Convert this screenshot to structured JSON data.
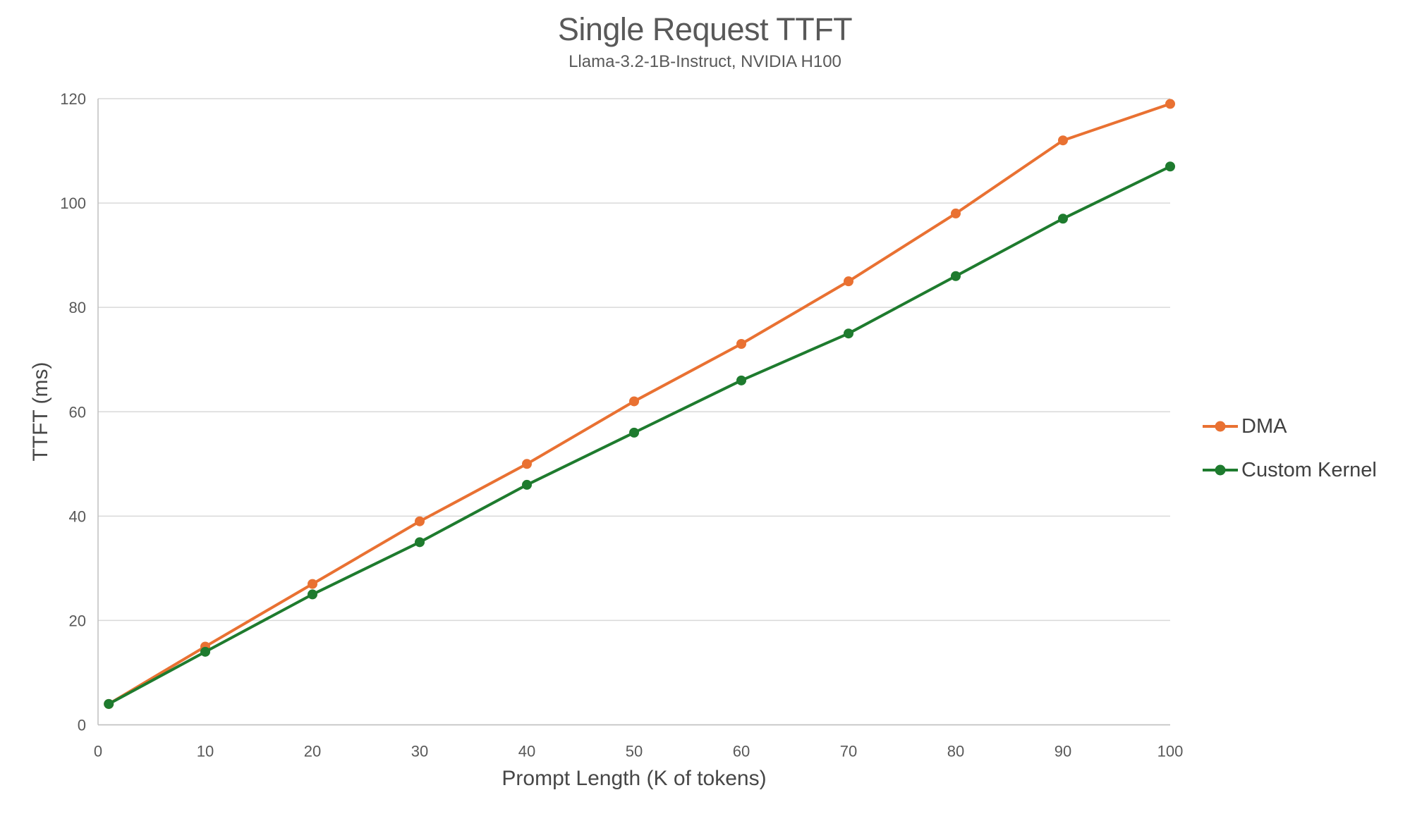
{
  "chart_data": {
    "type": "line",
    "title": "Single Request TTFT",
    "subtitle": "Llama-3.2-1B-Instruct, NVIDIA H100",
    "xlabel": "Prompt Length (K of tokens)",
    "ylabel": "TTFT (ms)",
    "x": [
      1,
      10,
      20,
      30,
      40,
      50,
      60,
      70,
      80,
      90,
      100
    ],
    "series": [
      {
        "name": "DMA",
        "color": "#E97132",
        "values": [
          4,
          15,
          27,
          39,
          50,
          62,
          73,
          85,
          98,
          112,
          119
        ]
      },
      {
        "name": "Custom Kernel",
        "color": "#1E7B2E",
        "values": [
          4,
          14,
          25,
          35,
          46,
          56,
          66,
          75,
          86,
          97,
          107
        ]
      }
    ],
    "xlim": [
      0,
      100
    ],
    "ylim": [
      0,
      120
    ],
    "xticks": [
      0,
      10,
      20,
      30,
      40,
      50,
      60,
      70,
      80,
      90,
      100
    ],
    "yticks": [
      0,
      20,
      40,
      60,
      80,
      100,
      120
    ],
    "grid": true,
    "legend_position": "right",
    "colors": {
      "gridline": "#D9D9D9",
      "axis_line": "#BFBFBF",
      "tick_text": "#595959",
      "title_text": "#595959",
      "axis_title_text": "#474747",
      "legend_text": "#404040"
    }
  }
}
